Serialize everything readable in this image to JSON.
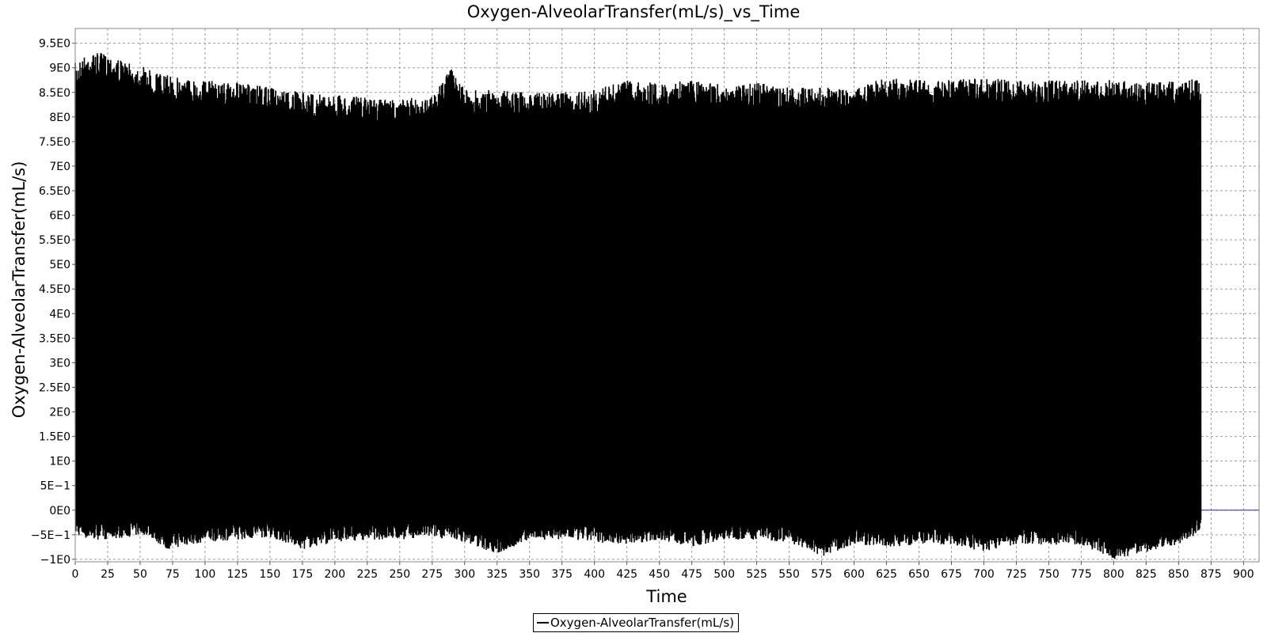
{
  "chart_data": {
    "type": "line",
    "title": "Oxygen-AlveolarTransfer(mL/s)_vs_Time",
    "xlabel": "Time",
    "ylabel": "Oxygen-AlveolarTransfer(mL/s)",
    "xlim": [
      0,
      912
    ],
    "ylim": [
      -1.05,
      9.8
    ],
    "x_ticks": [
      0,
      25,
      50,
      75,
      100,
      125,
      150,
      175,
      200,
      225,
      250,
      275,
      300,
      325,
      350,
      375,
      400,
      425,
      450,
      475,
      500,
      525,
      550,
      575,
      600,
      625,
      650,
      675,
      700,
      725,
      750,
      775,
      800,
      825,
      850,
      875,
      900
    ],
    "x_tick_labels": [
      "0",
      "25",
      "50",
      "75",
      "100",
      "125",
      "150",
      "175",
      "200",
      "225",
      "250",
      "275",
      "300",
      "325",
      "350",
      "375",
      "400",
      "425",
      "450",
      "475",
      "500",
      "525",
      "550",
      "575",
      "600",
      "625",
      "650",
      "675",
      "700",
      "725",
      "750",
      "775",
      "800",
      "825",
      "850",
      "875",
      "900"
    ],
    "y_ticks": [
      -1,
      -0.5,
      0,
      0.5,
      1,
      1.5,
      2,
      2.5,
      3,
      3.5,
      4,
      4.5,
      5,
      5.5,
      6,
      6.5,
      7,
      7.5,
      8,
      8.5,
      9,
      9.5
    ],
    "y_tick_labels": [
      "−1E0",
      "−5E−1",
      "0E0",
      "5E−1",
      "1E0",
      "1.5E0",
      "2E0",
      "2.5E0",
      "3E0",
      "3.5E0",
      "4E0",
      "4.5E0",
      "5E0",
      "5.5E0",
      "6E0",
      "6.5E0",
      "7E0",
      "7.5E0",
      "8E0",
      "8.5E0",
      "9E0",
      "9.5E0"
    ],
    "grid": true,
    "legend_position": "bottom-center",
    "series": [
      {
        "name": "Oxygen-AlveolarTransfer(mL/s)",
        "color": "#000000",
        "x_range": [
          0,
          867
        ],
        "envelope": {
          "x": [
            0,
            10,
            25,
            40,
            55,
            70,
            100,
            125,
            150,
            175,
            200,
            225,
            250,
            275,
            290,
            300,
            325,
            350,
            375,
            400,
            425,
            450,
            475,
            500,
            525,
            550,
            575,
            600,
            625,
            650,
            675,
            700,
            725,
            750,
            775,
            800,
            825,
            850,
            867
          ],
          "max": [
            9.1,
            9.3,
            9.3,
            9.1,
            9.0,
            8.85,
            8.75,
            8.7,
            8.6,
            8.5,
            8.45,
            8.4,
            8.35,
            8.45,
            9.0,
            8.55,
            8.55,
            8.5,
            8.5,
            8.55,
            8.75,
            8.7,
            8.75,
            8.65,
            8.7,
            8.6,
            8.6,
            8.6,
            8.8,
            8.75,
            8.75,
            8.8,
            8.75,
            8.75,
            8.75,
            8.75,
            8.7,
            8.75,
            8.8
          ],
          "min": [
            -0.5,
            -0.6,
            -0.6,
            -0.55,
            -0.5,
            -0.8,
            -0.65,
            -0.6,
            -0.55,
            -0.8,
            -0.65,
            -0.6,
            -0.6,
            -0.55,
            -0.6,
            -0.65,
            -0.9,
            -0.6,
            -0.6,
            -0.65,
            -0.7,
            -0.6,
            -0.75,
            -0.6,
            -0.6,
            -0.65,
            -0.95,
            -0.7,
            -0.75,
            -0.7,
            -0.7,
            -0.85,
            -0.7,
            -0.7,
            -0.7,
            -1.0,
            -0.85,
            -0.7,
            -0.45
          ]
        }
      }
    ]
  }
}
